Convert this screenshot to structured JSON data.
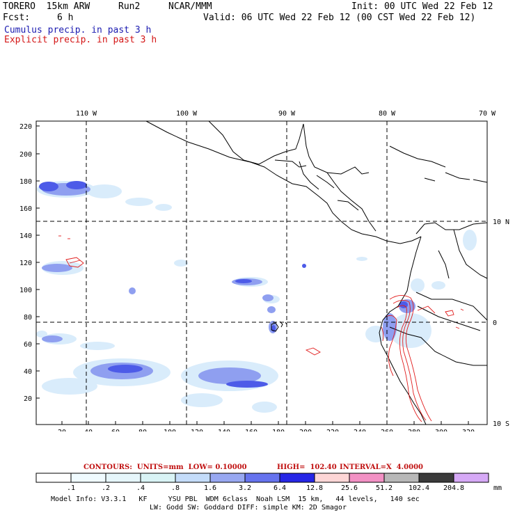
{
  "header": {
    "model": "TORERO  15km ARW",
    "run": "Run2",
    "org": "NCAR/MMM",
    "init": "Init: 00 UTC Wed 22 Feb 12",
    "fcst_label": "Fcst:",
    "fcst_value": "6 h",
    "valid": "Valid: 06 UTC Wed 22 Feb 12 (00 CST Wed 22 Feb 12)",
    "legend_cumulus": "Cumulus precip. in past 3 h",
    "legend_explicit": "Explicit precip. in past 3 h"
  },
  "map": {
    "lon_labels": [
      "110 W",
      "100 W",
      "90 W",
      "80 W",
      "70 W"
    ],
    "lat_labels": [
      "10 N",
      "0",
      "10 S"
    ],
    "y_ticks": [
      "220",
      "200",
      "180",
      "160",
      "140",
      "120",
      "100",
      "80",
      "60",
      "40",
      "20"
    ],
    "x_ticks": [
      "20",
      "40",
      "60",
      "80",
      "100",
      "120",
      "140",
      "160",
      "180",
      "200",
      "220",
      "240",
      "260",
      "280",
      "300",
      "320"
    ]
  },
  "contour_info": {
    "contours": "CONTOURS:  UNITS=mm  LOW= 0.10000",
    "high": "HIGH=  102.40",
    "interval": "INTERVAL=X  4.0000"
  },
  "colorbar": {
    "labels": [
      ".1",
      ".2",
      ".4",
      ".8",
      "1.6",
      "3.2",
      "6.4",
      "12.8",
      "25.6",
      "51.2",
      "102.4",
      "204.8"
    ],
    "unit": "mm",
    "colors": [
      "#ffffff",
      "#f0fbff",
      "#e6f6fb",
      "#d9f3f5",
      "#c4dcf9",
      "#98a8f1",
      "#6673ee",
      "#2626e6",
      "#fdd6d6",
      "#f291c4",
      "#b8b8b8",
      "#3b3b3b",
      "#d6a9f6"
    ]
  },
  "footer": {
    "line1": "Model Info: V3.3.1   KF     YSU PBL  WDM 6class  Noah LSM  15 km,   44 levels,   140 sec",
    "line2": "LW: Godd SW: Goddard DIFF: simple KM: 2D Smagor"
  }
}
